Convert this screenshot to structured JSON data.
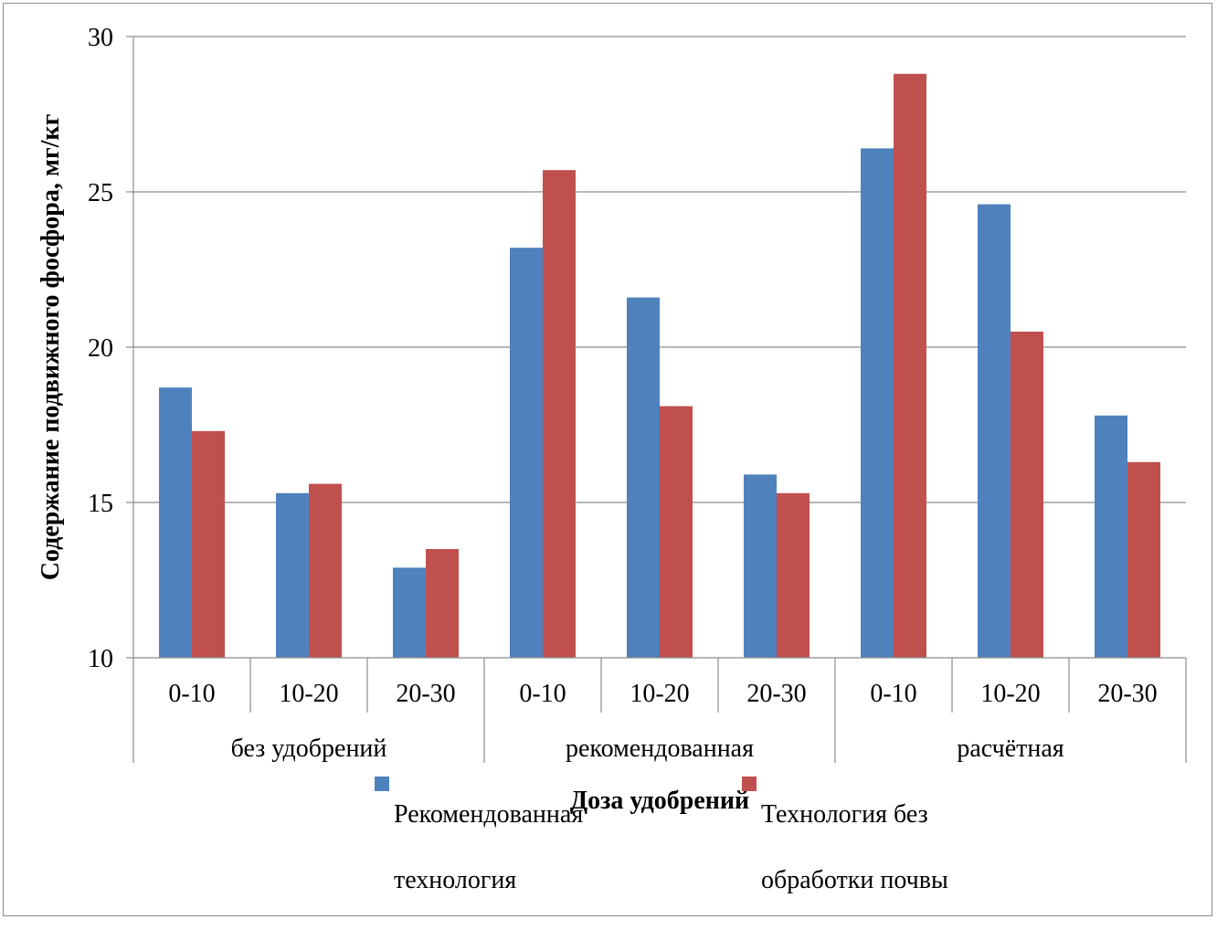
{
  "chart_data": {
    "type": "bar",
    "title": "",
    "xlabel": "Доза удобрений",
    "ylabel": "Содержание подвижного фосфора, мг/кг",
    "ylim": [
      10,
      30
    ],
    "yticks": [
      "10",
      "15",
      "20",
      "25",
      "30"
    ],
    "groups": [
      {
        "label": "без удобрений",
        "categories": [
          "0-10",
          "10-20",
          "20-30"
        ]
      },
      {
        "label": "рекомендованная",
        "categories": [
          "0-10",
          "10-20",
          "20-30"
        ]
      },
      {
        "label": "расчётная",
        "categories": [
          "0-10",
          "10-20",
          "20-30"
        ]
      }
    ],
    "series": [
      {
        "name": "Рекомендованная технология",
        "legend_lines": [
          "Рекомендованная",
          "технология"
        ],
        "color": "#4F81BD",
        "values": [
          18.7,
          15.3,
          12.9,
          23.2,
          21.6,
          15.9,
          26.4,
          24.6,
          17.8
        ]
      },
      {
        "name": "Технология без обработки почвы",
        "legend_lines": [
          "Технология без",
          "обработки почвы"
        ],
        "color": "#C0504D",
        "values": [
          17.3,
          15.6,
          13.5,
          25.7,
          18.1,
          15.3,
          28.8,
          20.5,
          16.3
        ]
      }
    ],
    "grid": true,
    "legend_position": "bottom"
  }
}
